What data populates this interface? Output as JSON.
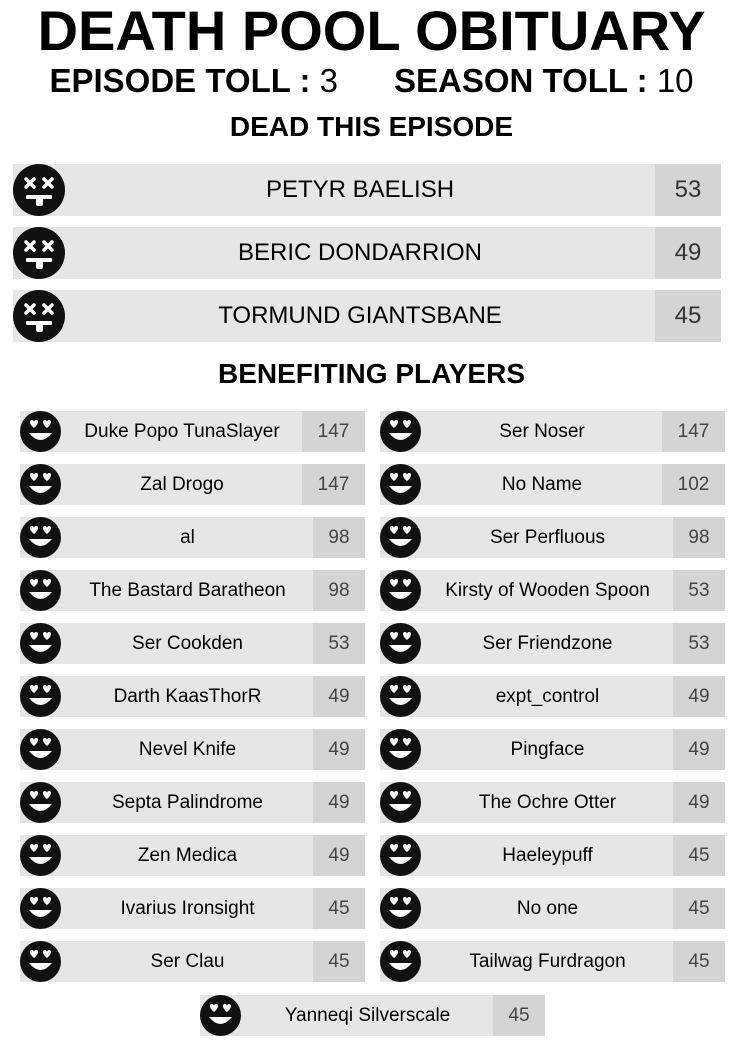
{
  "title": "DEATH POOL OBITUARY",
  "episode_toll": {
    "label": "EPISODE TOLL :",
    "value": "3"
  },
  "season_toll": {
    "label": "SEASON TOLL :",
    "value": "10"
  },
  "dead_section": {
    "heading": "DEAD THIS EPISODE",
    "icon": "dead-face-icon",
    "items": [
      {
        "name": "PETYR BAELISH",
        "score": "53"
      },
      {
        "name": "BERIC DONDARRION",
        "score": "49"
      },
      {
        "name": "TORMUND GIANTSBANE",
        "score": "45"
      }
    ]
  },
  "benefit_section": {
    "heading": "BENEFITING PLAYERS",
    "icon": "heart-eyes-face-icon",
    "left": [
      {
        "name": "Duke Popo TunaSlayer",
        "score": "147"
      },
      {
        "name": "Zal Drogo",
        "score": "147"
      },
      {
        "name": "al",
        "score": "98"
      },
      {
        "name": "The Bastard Baratheon",
        "score": "98"
      },
      {
        "name": "Ser Cookden",
        "score": "53"
      },
      {
        "name": "Darth KaasThorR",
        "score": "49"
      },
      {
        "name": "Nevel Knife",
        "score": "49"
      },
      {
        "name": "Septa Palindrome",
        "score": "49"
      },
      {
        "name": "Zen Medica",
        "score": "49"
      },
      {
        "name": "Ivarius Ironsight",
        "score": "45"
      },
      {
        "name": "Ser Clau",
        "score": "45"
      }
    ],
    "right": [
      {
        "name": "Ser Noser",
        "score": "147"
      },
      {
        "name": "No Name",
        "score": "102"
      },
      {
        "name": "Ser Perfluous",
        "score": "98"
      },
      {
        "name": "Kirsty of Wooden Spoon",
        "score": "53"
      },
      {
        "name": "Ser Friendzone",
        "score": "53"
      },
      {
        "name": "expt_control",
        "score": "49"
      },
      {
        "name": "Pingface",
        "score": "49"
      },
      {
        "name": "The Ochre Otter",
        "score": "49"
      },
      {
        "name": "Haeleypuff",
        "score": "45"
      },
      {
        "name": "No one",
        "score": "45"
      },
      {
        "name": "Tailwag Furdragon",
        "score": "45"
      }
    ],
    "last": {
      "name": "Yanneqi Silverscale",
      "score": "45"
    }
  },
  "colors": {
    "row_bg": "#e6e6e6",
    "score_bg": "#d4d4d4",
    "icon": "#111111"
  }
}
